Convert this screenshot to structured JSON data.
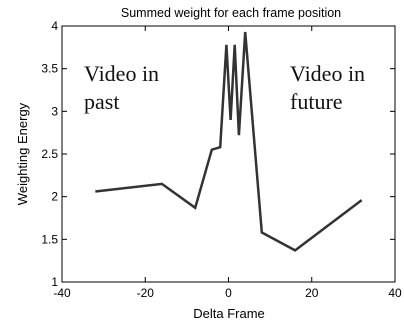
{
  "chart_data": {
    "type": "line",
    "title": "Summed weight for each frame position",
    "xlabel": "Delta Frame",
    "ylabel": "Weighting Energy",
    "xlim": [
      -40,
      40
    ],
    "ylim": [
      1,
      4
    ],
    "xticks": [
      -40,
      -20,
      0,
      20,
      40
    ],
    "xtick_labels": [
      "-40",
      "-20",
      "0",
      "20",
      "40"
    ],
    "yticks": [
      1,
      1.5,
      2,
      2.5,
      3,
      3.5,
      4
    ],
    "ytick_labels": [
      "1",
      "1.5",
      "2",
      "2.5",
      "3",
      "3.5",
      "4"
    ],
    "grid": false,
    "series": [
      {
        "x": [
          -32,
          -16,
          -8,
          -4,
          -2,
          -0.5,
          0.5,
          1.5,
          2.5,
          4,
          8,
          16,
          32
        ],
        "values": [
          2.06,
          2.15,
          1.87,
          2.55,
          2.58,
          3.78,
          2.9,
          3.78,
          2.72,
          3.93,
          1.58,
          1.37,
          1.96
        ],
        "color": "#333333"
      }
    ],
    "annotations": [
      {
        "line1": "Video in",
        "line2": "past"
      },
      {
        "line1": "Video in",
        "line2": "future"
      }
    ]
  }
}
